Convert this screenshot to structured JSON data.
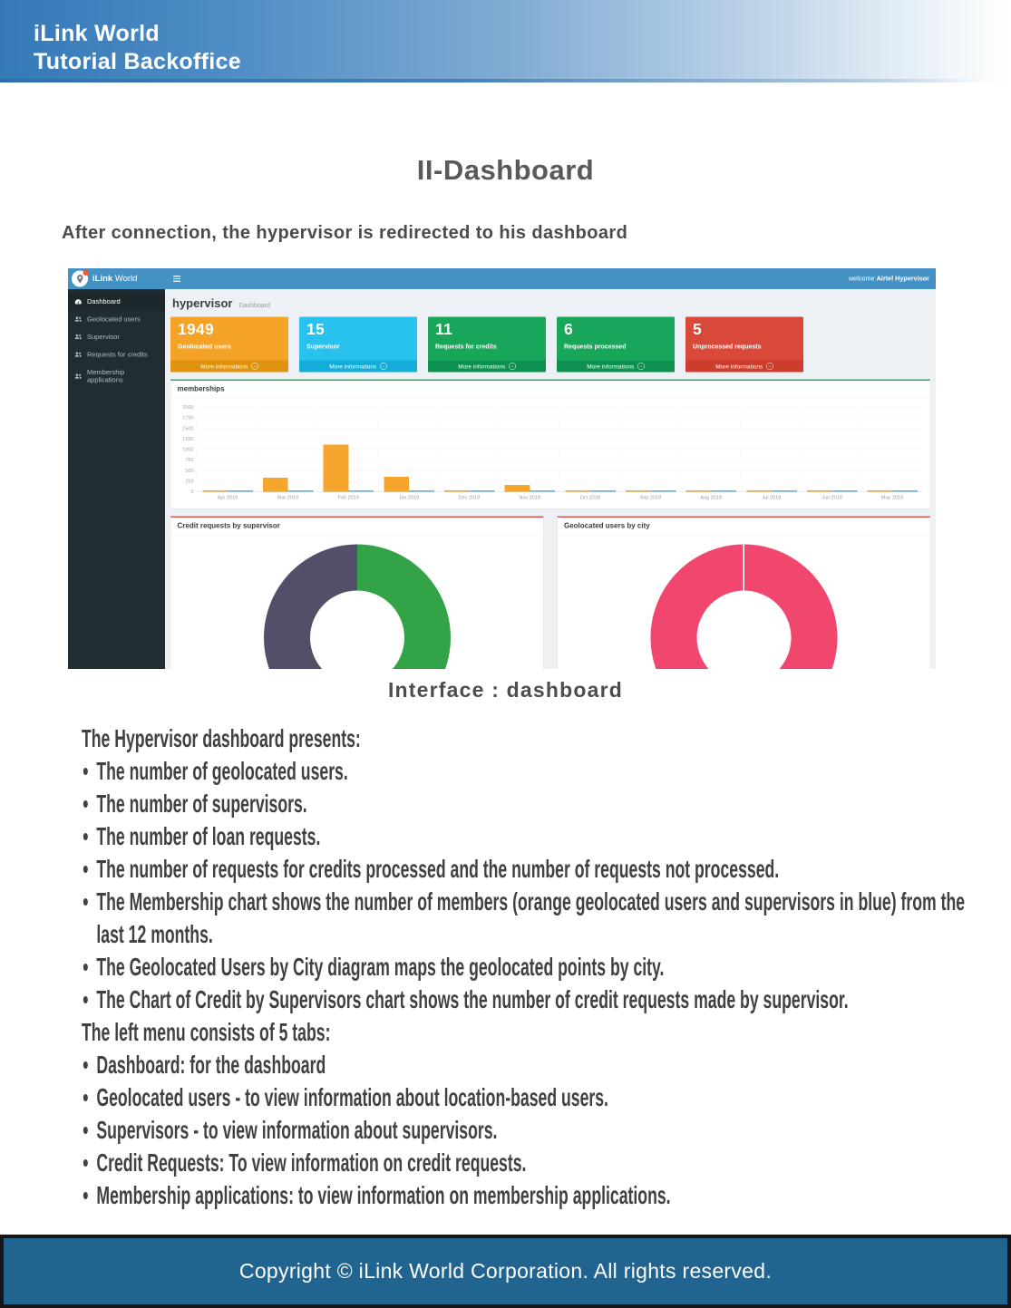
{
  "page": {
    "header": {
      "line1": "iLink World",
      "line2": "Tutorial Backoffice"
    },
    "title": "II-Dashboard",
    "intro": "After connection, the hypervisor is redirected to his dashboard",
    "caption": "Interface : dashboard",
    "footer": "Copyright © iLink World Corporation. All rights reserved."
  },
  "colors": {
    "header_blue": "#3579b8",
    "topbar_blue": "#4492c3",
    "sidebar_dark": "#222d32",
    "content_bg": "#edf1f6",
    "memberships_accent": "#25b24b",
    "donut_panel_accent": "#e2564a",
    "footer_blue": "#20648f"
  },
  "dashboard": {
    "brand": {
      "name_bold": "iLink",
      "name_rest": "World"
    },
    "topbar": {
      "welcome_prefix": "welcome",
      "welcome_user": "Airtel Hypervisor"
    },
    "sidebar": {
      "items": [
        {
          "label": "Dashboard",
          "icon": "dashboard-icon",
          "active": true
        },
        {
          "label": "Geolocated users",
          "icon": "users-icon",
          "active": false
        },
        {
          "label": "Supervisor",
          "icon": "users-icon",
          "active": false
        },
        {
          "label": "Requests for credits",
          "icon": "users-icon",
          "active": false
        },
        {
          "label": "Membership applications",
          "icon": "users-icon",
          "active": false
        }
      ]
    },
    "breadcrumb": {
      "title": "hypervisor",
      "sub": "Dashboard"
    },
    "stat_cards": [
      {
        "value": "1949",
        "label": "Geolocated users",
        "color": "#f5a326",
        "footer_color": "#e0930e",
        "more": "More informations"
      },
      {
        "value": "15",
        "label": "Supervisor",
        "color": "#29c1ed",
        "footer_color": "#14acd8",
        "more": "More informations"
      },
      {
        "value": "11",
        "label": "Requests for credits",
        "color": "#18a65a",
        "footer_color": "#0d9150",
        "more": "More informations"
      },
      {
        "value": "6",
        "label": "Requests processed",
        "color": "#18a65a",
        "footer_color": "#0d9150",
        "more": "More informations"
      },
      {
        "value": "5",
        "label": "Unprocessed requests",
        "color": "#d9493a",
        "footer_color": "#cc3d2e",
        "more": "More informations"
      }
    ],
    "panels": {
      "memberships_title": "memberships",
      "credit_title": "Credit requests by supervisor",
      "geo_title": "Geolocated users by city"
    }
  },
  "chart_data": [
    {
      "type": "bar",
      "title": "memberships",
      "categories": [
        "Apr 2019",
        "Mar 2019",
        "Feb 2019",
        "Jan 2019",
        "Dec 2018",
        "Nov 2018",
        "Oct 2018",
        "Sep 2018",
        "Aug 2018",
        "Jul 2018",
        "Jun 2018",
        "May 2018"
      ],
      "series": [
        {
          "name": "geolocated users (orange)",
          "color": "#f6a52d",
          "values": [
            10,
            330,
            1120,
            350,
            20,
            160,
            10,
            10,
            10,
            10,
            10,
            10
          ]
        },
        {
          "name": "supervisors (blue)",
          "color": "#55b8ea",
          "values": [
            10,
            10,
            10,
            30,
            10,
            10,
            10,
            10,
            10,
            10,
            10,
            10
          ]
        }
      ],
      "ylim": [
        0,
        2000
      ],
      "yticks": [
        0,
        250,
        500,
        750,
        1000,
        1250,
        1500,
        1750,
        2000
      ],
      "grid": true,
      "legend": "none"
    },
    {
      "type": "pie",
      "title": "Credit requests by supervisor",
      "slices": [
        {
          "pct": 50,
          "color": "#32a447"
        },
        {
          "pct": 50,
          "color": "#554e68"
        }
      ]
    },
    {
      "type": "pie",
      "title": "Geolocated users by city",
      "slices": [
        {
          "pct": 100,
          "color": "#f1476f"
        }
      ]
    }
  ],
  "body": {
    "bullet_char": "•",
    "lines": [
      {
        "bullet": false,
        "text": "The Hypervisor dashboard presents:"
      },
      {
        "bullet": true,
        "text": "The number of geolocated users."
      },
      {
        "bullet": true,
        "text": "The number of supervisors."
      },
      {
        "bullet": true,
        "text": "The number of loan requests."
      },
      {
        "bullet": true,
        "text": "The number of requests for credits processed and the number of requests not processed."
      },
      {
        "bullet": true,
        "text": "The Membership chart shows the number of members (orange geolocated users and supervisors in blue) from the last 12 months."
      },
      {
        "bullet": true,
        "text": "The Geolocated Users by City diagram maps the geolocated points by city."
      },
      {
        "bullet": true,
        "text": "The Chart of Credit by Supervisors chart shows the number of credit requests made by supervisor."
      },
      {
        "bullet": false,
        "text": "The left menu consists of 5 tabs:"
      },
      {
        "bullet": true,
        "text": "Dashboard: for the dashboard"
      },
      {
        "bullet": true,
        "text": "Geolocated users - to view information about location-based users."
      },
      {
        "bullet": true,
        "text": "Supervisors - to view information about supervisors."
      },
      {
        "bullet": true,
        "text": "Credit Requests: To view information on credit requests."
      },
      {
        "bullet": true,
        "text": "Membership applications: to view information on membership applications."
      }
    ]
  }
}
